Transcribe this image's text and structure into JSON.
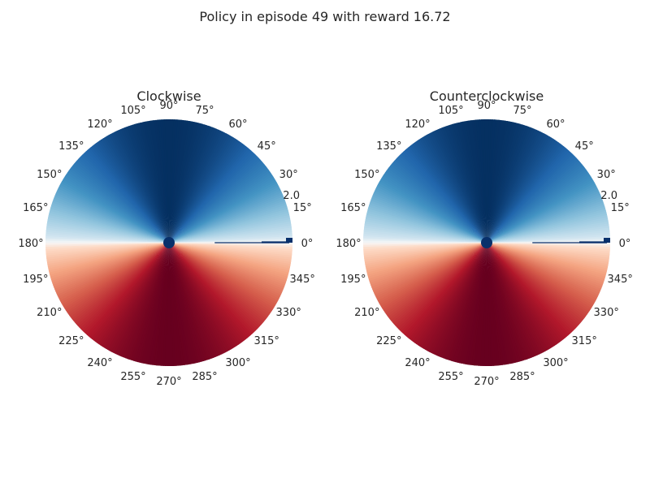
{
  "figure": {
    "title": "Policy in episode 49 with reward 16.72"
  },
  "chart_data": [
    {
      "type": "heatmap",
      "projection": "polar",
      "title": "Clockwise",
      "theta_tick_labels": [
        "0°",
        "15°",
        "30°",
        "45°",
        "60°",
        "75°",
        "90°",
        "105°",
        "120°",
        "135°",
        "150°",
        "165°",
        "180°",
        "195°",
        "210°",
        "225°",
        "240°",
        "255°",
        "270°",
        "285°",
        "300°",
        "315°",
        "330°",
        "345°"
      ],
      "r_tick_label": "2.0",
      "r_max": 2.0,
      "colormap": "RdBu",
      "field": "sin(theta)",
      "colors": {
        "low": "#67001f",
        "mid": "#f7f7f7",
        "high": "#053061"
      },
      "grid": false,
      "marker": {
        "theta_deg": 0,
        "r": 2.0,
        "color": "#08306b"
      }
    },
    {
      "type": "heatmap",
      "projection": "polar",
      "title": "Counterclockwise",
      "theta_tick_labels": [
        "0°",
        "15°",
        "30°",
        "45°",
        "60°",
        "75°",
        "90°",
        "105°",
        "120°",
        "135°",
        "150°",
        "165°",
        "180°",
        "195°",
        "210°",
        "225°",
        "240°",
        "255°",
        "270°",
        "285°",
        "300°",
        "315°",
        "330°",
        "345°"
      ],
      "r_tick_label": "2.0",
      "r_max": 2.0,
      "colormap": "RdBu",
      "field": "sin(theta)",
      "colors": {
        "low": "#67001f",
        "mid": "#f7f7f7",
        "high": "#053061"
      },
      "grid": false,
      "marker": {
        "theta_deg": 0,
        "r": 2.0,
        "color": "#08306b"
      }
    }
  ]
}
